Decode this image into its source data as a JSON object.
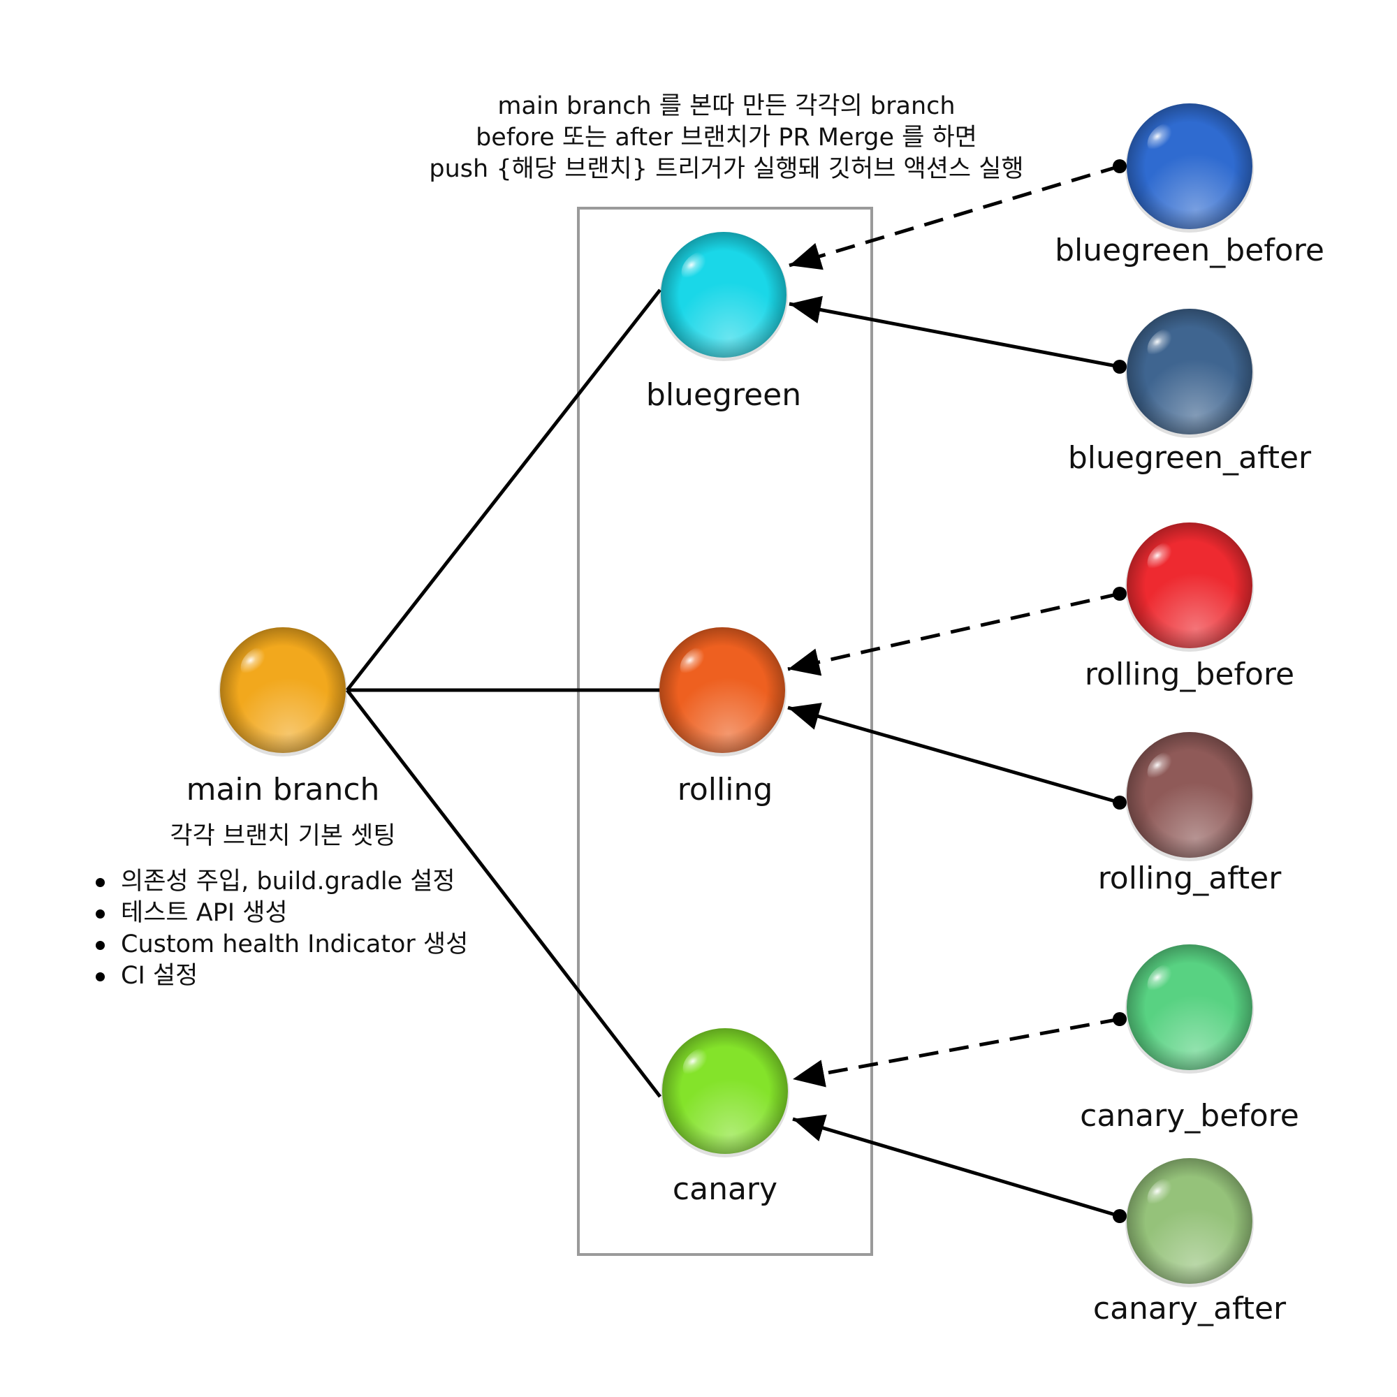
{
  "note": {
    "line1": "main branch 를 본따 만든 각각의 branch",
    "line2": "before 또는 after 브랜치가 PR Merge 를 하면",
    "line3": "push {해당 브랜치} 트리거가 실행돼 깃허브 액션스 실행"
  },
  "main": {
    "label": "main branch",
    "sublabel": "각각 브랜치 기본 셋팅",
    "color": "#f2a81d",
    "bullets": [
      "의존성 주입, build.gradle 설정",
      "테스트 API 생성",
      "Custom health Indicator 생성",
      "CI 설정"
    ]
  },
  "branches": [
    {
      "label": "bluegreen",
      "color": "#1ad7e8"
    },
    {
      "label": "rolling",
      "color": "#ee6020"
    },
    {
      "label": "canary",
      "color": "#84e32a"
    }
  ],
  "children": [
    {
      "label": "bluegreen_before",
      "color": "#2f6bd0",
      "edge": "dashed"
    },
    {
      "label": "bluegreen_after",
      "color": "#3f6590",
      "edge": "solid"
    },
    {
      "label": "rolling_before",
      "color": "#ee2a30",
      "edge": "dashed"
    },
    {
      "label": "rolling_after",
      "color": "#8f5a58",
      "edge": "solid"
    },
    {
      "label": "canary_before",
      "color": "#58d282",
      "edge": "dashed"
    },
    {
      "label": "canary_after",
      "color": "#95c27a",
      "edge": "solid"
    }
  ]
}
